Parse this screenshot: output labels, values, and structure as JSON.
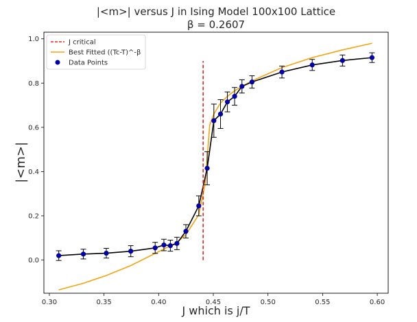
{
  "chart_data": {
    "type": "line",
    "title": "|<m>| versus J in Ising Model 100x100 Lattice",
    "subtitle": "β = 0.2607",
    "xlabel": "J which is j/T",
    "ylabel": "|<m>|",
    "xlim": [
      0.295,
      0.61
    ],
    "ylim": [
      -0.15,
      1.03
    ],
    "xticks": [
      "0.30",
      "0.35",
      "0.40",
      "0.45",
      "0.50",
      "0.55",
      "0.60"
    ],
    "yticks": [
      "0.0",
      "0.2",
      "0.4",
      "0.6",
      "0.8",
      "1.0"
    ],
    "legend_position": "top-left",
    "grid": false,
    "series": [
      {
        "name": "J critical",
        "style": "dashed",
        "color": "#e8291c",
        "x": [
          0.4407,
          0.4407
        ],
        "y": [
          0.0,
          0.9
        ]
      },
      {
        "name": "Best Fitted ((Tc-T)^-β",
        "style": "solid",
        "color": "#f5a30f",
        "x": [
          0.3086,
          0.3311,
          0.3521,
          0.3745,
          0.3968,
          0.4048,
          0.4107,
          0.4167,
          0.4249,
          0.4367,
          0.4427,
          0.4467,
          0.4505,
          0.4566,
          0.4629,
          0.4695,
          0.4762,
          0.4854,
          0.5128,
          0.5405,
          0.5682,
          0.5952
        ],
        "y": [
          -0.135,
          -0.105,
          -0.07,
          -0.025,
          0.03,
          0.05,
          0.065,
          0.08,
          0.115,
          0.205,
          0.35,
          0.61,
          0.66,
          0.71,
          0.74,
          0.765,
          0.785,
          0.81,
          0.87,
          0.915,
          0.95,
          0.98
        ]
      },
      {
        "name": "Data Points",
        "style": "markers",
        "color": "#0000aa",
        "x": [
          0.3086,
          0.3311,
          0.3521,
          0.3745,
          0.3968,
          0.4048,
          0.4107,
          0.4167,
          0.4249,
          0.4367,
          0.4444,
          0.4505,
          0.4566,
          0.4629,
          0.4695,
          0.4762,
          0.4854,
          0.5128,
          0.5405,
          0.5682,
          0.5952
        ],
        "y": [
          0.02,
          0.027,
          0.031,
          0.04,
          0.055,
          0.068,
          0.065,
          0.075,
          0.13,
          0.245,
          0.415,
          0.63,
          0.66,
          0.715,
          0.74,
          0.785,
          0.805,
          0.85,
          0.882,
          0.902,
          0.915
        ],
        "yerr": [
          0.022,
          0.022,
          0.022,
          0.025,
          0.025,
          0.026,
          0.025,
          0.028,
          0.03,
          0.045,
          0.075,
          0.075,
          0.065,
          0.045,
          0.04,
          0.03,
          0.028,
          0.027,
          0.025,
          0.025,
          0.022
        ]
      }
    ]
  }
}
